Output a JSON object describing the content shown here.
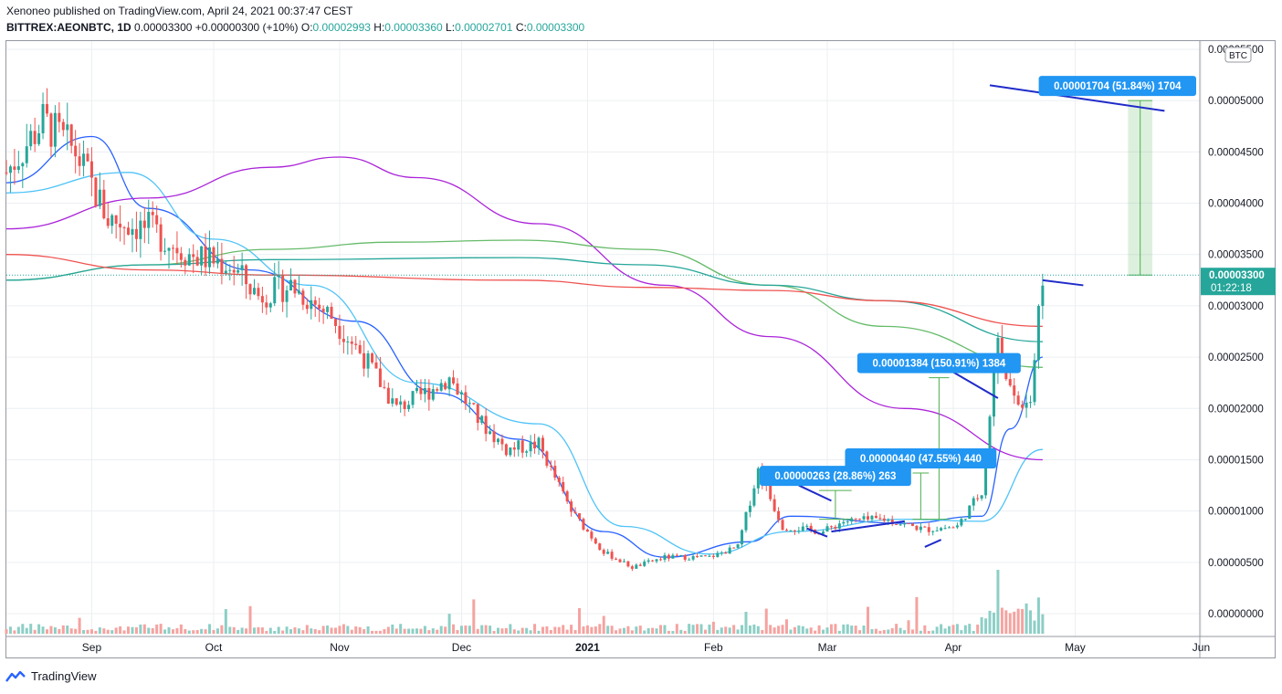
{
  "header": {
    "line1": "Xenoneo published on TradingView.com, April 24, 2021 00:37:47 CEST",
    "symbol": "BITTREX:AEONBTC, 1D",
    "price": "0.00003300",
    "change": "+0.00000300 (+10%)",
    "o_label": "O:",
    "o": "0.00002993",
    "h_label": "H:",
    "h": "0.00003360",
    "l_label": "L:",
    "l": "0.00002701",
    "c_label": "C:",
    "c": "0.00003300"
  },
  "footer": {
    "brand": "TradingView"
  },
  "colors": {
    "up": "#26a69a",
    "down": "#ef5350",
    "vol_up": "#8ccfc6",
    "vol_down": "#f5a3a0",
    "ma_fast": "#2962ff",
    "ma_mid": "#4fc3f7",
    "ma_purple": "#ab24d9",
    "ma_green": "#66bb6a",
    "ma_teal": "#26a69a",
    "ma_red": "#ef5350",
    "annotation": "#2196f3",
    "trendline": "#1f2bc9"
  },
  "chart_data": {
    "type": "candlestick",
    "currency_badge": "BTC",
    "x_ticks": [
      "Sep",
      "Oct",
      "Nov",
      "Dec",
      "2021",
      "Feb",
      "Mar",
      "Apr",
      "May",
      "Jun"
    ],
    "y_ticks": [
      "0.00005500",
      "0.00005000",
      "0.00004500",
      "0.00004000",
      "0.00003500",
      "0.00003000",
      "0.00002500",
      "0.00002000",
      "0.00001500",
      "0.00001000",
      "0.00000500",
      "0.00000000"
    ],
    "ylim": [
      0,
      5.5e-05
    ],
    "last_price_label": "0.00003300",
    "countdown": "01:22:18",
    "price_path": [
      {
        "date": "2020-08-11",
        "price": 4.3e-05
      },
      {
        "date": "2020-08-20",
        "price": 4.8e-05
      },
      {
        "date": "2020-08-28",
        "price": 4.5e-05
      },
      {
        "date": "2020-09-05",
        "price": 3.85e-05
      },
      {
        "date": "2020-09-15",
        "price": 3.75e-05
      },
      {
        "date": "2020-09-25",
        "price": 3.5e-05
      },
      {
        "date": "2020-10-05",
        "price": 3.4e-05
      },
      {
        "date": "2020-10-12",
        "price": 3.1e-05
      },
      {
        "date": "2020-10-20",
        "price": 3.2e-05
      },
      {
        "date": "2020-10-30",
        "price": 2.9e-05
      },
      {
        "date": "2020-11-07",
        "price": 2.5e-05
      },
      {
        "date": "2020-11-15",
        "price": 2e-05
      },
      {
        "date": "2020-11-22",
        "price": 2.15e-05
      },
      {
        "date": "2020-11-28",
        "price": 2.3e-05
      },
      {
        "date": "2020-12-05",
        "price": 1.9e-05
      },
      {
        "date": "2020-12-12",
        "price": 1.6e-05
      },
      {
        "date": "2020-12-20",
        "price": 1.65e-05
      },
      {
        "date": "2020-12-28",
        "price": 1e-05
      },
      {
        "date": "2021-01-05",
        "price": 6e-06
      },
      {
        "date": "2021-01-12",
        "price": 4.5e-06
      },
      {
        "date": "2021-01-20",
        "price": 5.5e-06
      },
      {
        "date": "2021-01-31",
        "price": 5.5e-06
      },
      {
        "date": "2021-02-07",
        "price": 6.5e-06
      },
      {
        "date": "2021-02-12",
        "price": 1.4e-05
      },
      {
        "date": "2021-02-18",
        "price": 8.5e-06
      },
      {
        "date": "2021-02-28",
        "price": 8e-06
      },
      {
        "date": "2021-03-05",
        "price": 9e-06
      },
      {
        "date": "2021-03-15",
        "price": 9.2e-06
      },
      {
        "date": "2021-03-25",
        "price": 8.2e-06
      },
      {
        "date": "2021-04-02",
        "price": 8.5e-06
      },
      {
        "date": "2021-04-08",
        "price": 1.2e-05
      },
      {
        "date": "2021-04-12",
        "price": 2.7e-05
      },
      {
        "date": "2021-04-16",
        "price": 2.05e-05
      },
      {
        "date": "2021-04-20",
        "price": 2.1e-05
      },
      {
        "date": "2021-04-23",
        "price": 3.3e-05
      }
    ],
    "moving_averages": [
      {
        "color": "ma_fast",
        "points": [
          [
            "2020-08-11",
            4.2e-05
          ],
          [
            "2020-09-01",
            4.65e-05
          ],
          [
            "2020-09-15",
            3.95e-05
          ],
          [
            "2020-10-10",
            3.35e-05
          ],
          [
            "2020-11-05",
            2.85e-05
          ],
          [
            "2020-11-25",
            2.15e-05
          ],
          [
            "2020-12-15",
            1.7e-05
          ],
          [
            "2021-01-05",
            8e-06
          ],
          [
            "2021-01-20",
            5.5e-06
          ],
          [
            "2021-02-10",
            7e-06
          ],
          [
            "2021-02-20",
            9.5e-06
          ],
          [
            "2021-03-20",
            8.8e-06
          ],
          [
            "2021-04-08",
            9.5e-06
          ],
          [
            "2021-04-15",
            1.8e-05
          ],
          [
            "2021-04-23",
            2.5e-05
          ]
        ]
      },
      {
        "color": "ma_mid",
        "points": [
          [
            "2020-08-11",
            4.1e-05
          ],
          [
            "2020-09-10",
            4.3e-05
          ],
          [
            "2020-10-01",
            3.65e-05
          ],
          [
            "2020-10-25",
            3.2e-05
          ],
          [
            "2020-11-20",
            2.25e-05
          ],
          [
            "2020-12-20",
            1.85e-05
          ],
          [
            "2021-01-10",
            8.5e-06
          ],
          [
            "2021-01-31",
            5.8e-06
          ],
          [
            "2021-02-20",
            8e-06
          ],
          [
            "2021-03-20",
            9.2e-06
          ],
          [
            "2021-04-08",
            9e-06
          ],
          [
            "2021-04-23",
            1.6e-05
          ]
        ]
      },
      {
        "color": "ma_purple",
        "points": [
          [
            "2020-08-11",
            3.75e-05
          ],
          [
            "2020-09-15",
            4.05e-05
          ],
          [
            "2020-10-15",
            4.35e-05
          ],
          [
            "2020-11-01",
            4.45e-05
          ],
          [
            "2020-11-20",
            4.25e-05
          ],
          [
            "2020-12-20",
            3.8e-05
          ],
          [
            "2021-01-20",
            3.2e-05
          ],
          [
            "2021-02-15",
            2.7e-05
          ],
          [
            "2021-03-20",
            2e-05
          ],
          [
            "2021-04-23",
            1.5e-05
          ]
        ]
      },
      {
        "color": "ma_green",
        "points": [
          [
            "2020-08-11",
            3.25e-05
          ],
          [
            "2020-09-15",
            3.4e-05
          ],
          [
            "2020-10-15",
            3.55e-05
          ],
          [
            "2020-11-15",
            3.62e-05
          ],
          [
            "2020-12-15",
            3.64e-05
          ],
          [
            "2021-01-15",
            3.55e-05
          ],
          [
            "2021-02-15",
            3.2e-05
          ],
          [
            "2021-03-15",
            2.8e-05
          ],
          [
            "2021-04-23",
            2.4e-05
          ]
        ]
      },
      {
        "color": "ma_teal",
        "points": [
          [
            "2020-08-11",
            3.25e-05
          ],
          [
            "2020-09-15",
            3.4e-05
          ],
          [
            "2020-10-15",
            3.45e-05
          ],
          [
            "2020-12-15",
            3.47e-05
          ],
          [
            "2021-01-15",
            3.4e-05
          ],
          [
            "2021-02-15",
            3.2e-05
          ],
          [
            "2021-03-15",
            3.05e-05
          ],
          [
            "2021-04-23",
            2.65e-05
          ]
        ]
      },
      {
        "color": "ma_red",
        "points": [
          [
            "2020-08-11",
            3.5e-05
          ],
          [
            "2020-09-15",
            3.35e-05
          ],
          [
            "2020-10-15",
            3.3e-05
          ],
          [
            "2020-12-15",
            3.25e-05
          ],
          [
            "2021-01-15",
            3.18e-05
          ],
          [
            "2021-02-15",
            3.15e-05
          ],
          [
            "2021-03-15",
            3.05e-05
          ],
          [
            "2021-04-23",
            2.8e-05
          ]
        ]
      }
    ],
    "annotations": [
      {
        "label": "0.00001704 (51.84%) 1704",
        "date_from": "2021-05-14",
        "date_to": "2021-05-20",
        "from": 3.3e-05,
        "to": 5e-05
      },
      {
        "label": "0.00001384 (150.91%) 1384",
        "date_from": "2021-03-26",
        "date_to": "2021-03-31",
        "from": 9.2e-06,
        "to": 2.3e-05
      },
      {
        "label": "0.00000440 (47.55%) 440",
        "date_from": "2021-03-22",
        "date_to": "2021-03-26",
        "from": 9.2e-06,
        "to": 1.37e-05
      },
      {
        "label": "0.00000263 (28.86%) 263",
        "date_from": "2021-02-27",
        "date_to": "2021-03-07",
        "from": 9.2e-06,
        "to": 1.2e-05
      }
    ],
    "trendlines": [
      {
        "from": [
          "2021-04-10",
          5.15e-05
        ],
        "to": [
          "2021-05-23",
          4.9e-05
        ]
      },
      {
        "from": [
          "2021-04-23",
          3.25e-05
        ],
        "to": [
          "2021-05-03",
          3.2e-05
        ]
      },
      {
        "from": [
          "2021-03-30",
          2.4e-05
        ],
        "to": [
          "2021-04-12",
          2.1e-05
        ]
      },
      {
        "from": [
          "2021-02-22",
          1.25e-05
        ],
        "to": [
          "2021-03-02",
          1.1e-05
        ]
      },
      {
        "from": [
          "2021-03-02",
          8e-06
        ],
        "to": [
          "2021-03-20",
          9e-06
        ]
      },
      {
        "from": [
          "2021-02-24",
          8.3e-06
        ],
        "to": [
          "2021-03-01",
          7.5e-06
        ]
      },
      {
        "from": [
          "2021-03-25",
          6.5e-06
        ],
        "to": [
          "2021-03-29",
          7.2e-06
        ]
      }
    ]
  }
}
